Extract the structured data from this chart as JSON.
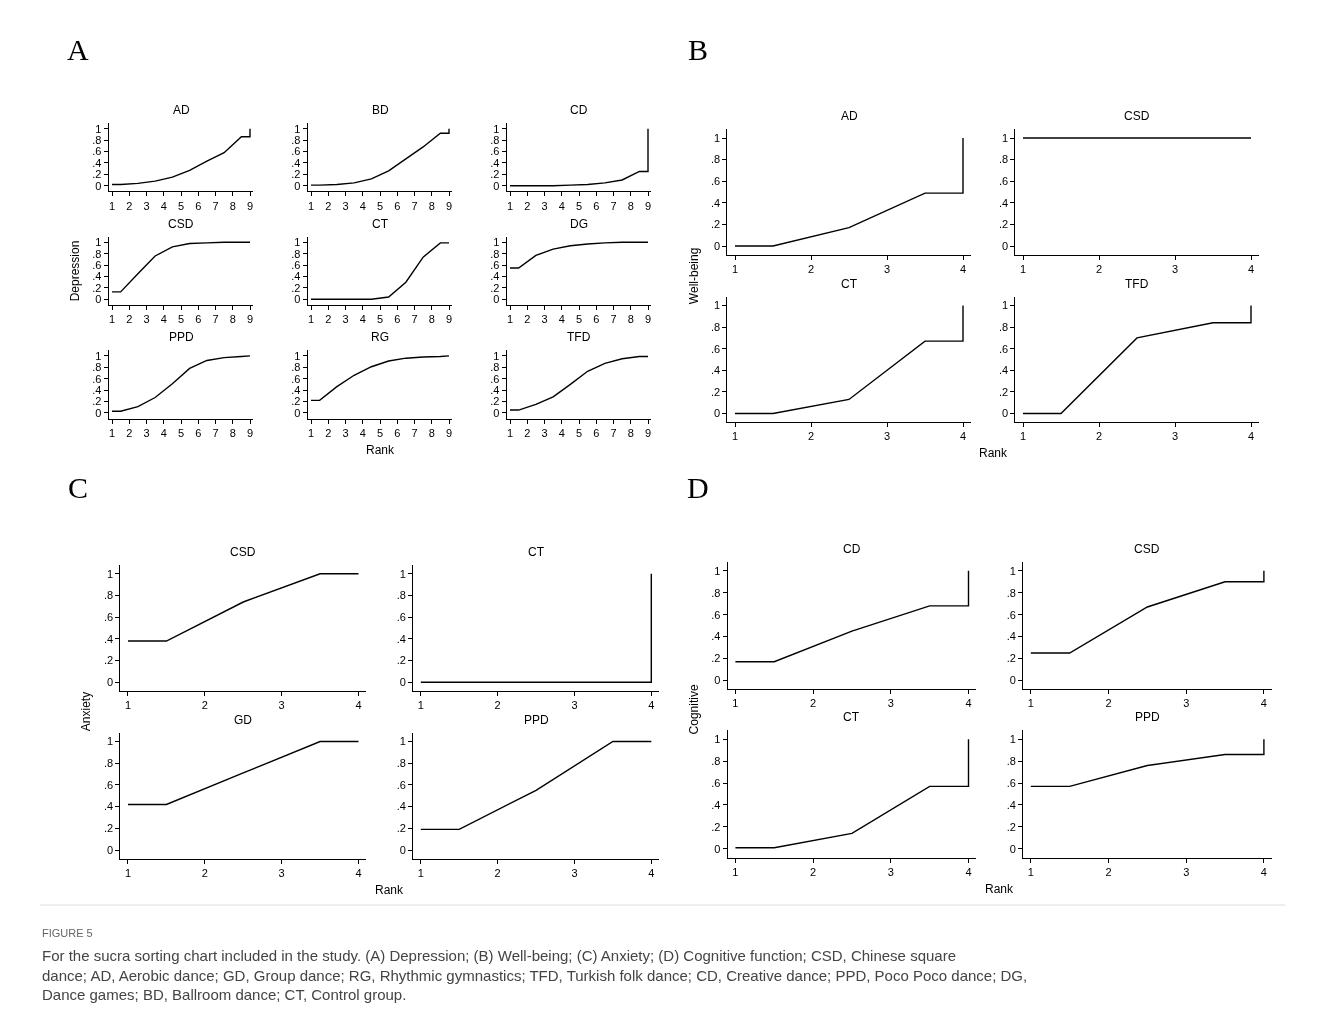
{
  "chart_data": [
    {
      "type": "line",
      "title": "AD",
      "x": [
        1,
        1.5,
        2.5,
        3.5,
        4.5,
        5.5,
        6.5,
        7.5,
        8.5,
        9,
        9
      ],
      "values": [
        0.02,
        0.02,
        0.04,
        0.08,
        0.15,
        0.27,
        0.43,
        0.58,
        0.86,
        0.86,
        1
      ],
      "color": "#000000",
      "xlim": [
        0.8,
        9.2
      ],
      "ylim": [
        -0.1,
        1.1
      ],
      "xticks": [
        1,
        2,
        3,
        4,
        5,
        6,
        7,
        8,
        9
      ],
      "yticks": [
        0,
        {
          "value": 0.2,
          "label": ".2"
        },
        {
          "value": 0.4,
          "label": ".4"
        },
        {
          "value": 0.6,
          "label": ".6"
        },
        {
          "value": 0.8,
          "label": ".8"
        },
        1
      ],
      "annotations": [
        "A",
        "FIGURE 5",
        "For the sucra sorting chart included in the study. (A) Depression; (B) Well-being; (C) Anxiety; (D) Cognitive function; CSD, Chinese square dance; AD, Aerobic dance; GD, Group dance; RG, Rhythmic gymnastics; TFD, Turkish folk dance; CD, Creative dance; PPD, Poco Poco dance; DG, Dance games; BD, Ballroom dance; CT, Control group."
      ]
    },
    {
      "type": "line",
      "title": "BD",
      "x": [
        1,
        1.5,
        2.5,
        3.5,
        4.5,
        5.5,
        6.5,
        7.5,
        8.5,
        9,
        9
      ],
      "values": [
        0.01,
        0.01,
        0.02,
        0.05,
        0.12,
        0.26,
        0.47,
        0.68,
        0.92,
        0.92,
        1
      ],
      "color": "#000000",
      "xlim": [
        0.8,
        9.2
      ],
      "ylim": [
        -0.1,
        1.1
      ],
      "xticks": [
        1,
        2,
        3,
        4,
        5,
        6,
        7,
        8,
        9
      ],
      "yticks": [
        0,
        {
          "value": 0.2,
          "label": ".2"
        },
        {
          "value": 0.4,
          "label": ".4"
        },
        {
          "value": 0.6,
          "label": ".6"
        },
        {
          "value": 0.8,
          "label": ".8"
        },
        1
      ]
    },
    {
      "type": "line",
      "title": "CD",
      "x": [
        1,
        1.5,
        2.5,
        3.5,
        4.5,
        5.5,
        6.5,
        7.5,
        8.5,
        9,
        9
      ],
      "values": [
        0,
        0,
        0,
        0,
        0.01,
        0.02,
        0.05,
        0.1,
        0.25,
        0.25,
        1
      ],
      "color": "#000000",
      "xlim": [
        0.8,
        9.2
      ],
      "ylim": [
        -0.1,
        1.1
      ],
      "xticks": [
        1,
        2,
        3,
        4,
        5,
        6,
        7,
        8,
        9
      ],
      "yticks": [
        0,
        {
          "value": 0.2,
          "label": ".2"
        },
        {
          "value": 0.4,
          "label": ".4"
        },
        {
          "value": 0.6,
          "label": ".6"
        },
        {
          "value": 0.8,
          "label": ".8"
        },
        1
      ]
    },
    {
      "type": "line",
      "title": "CSD",
      "ylabel": "Depression",
      "x": [
        1,
        1.5,
        2.5,
        3.5,
        4.5,
        5.5,
        6.5,
        7.5,
        8.5,
        9
      ],
      "values": [
        0.13,
        0.13,
        0.45,
        0.76,
        0.92,
        0.98,
        0.99,
        1,
        1,
        1
      ],
      "color": "#000000",
      "xlim": [
        0.8,
        9.2
      ],
      "ylim": [
        -0.1,
        1.1
      ],
      "xticks": [
        1,
        2,
        3,
        4,
        5,
        6,
        7,
        8,
        9
      ],
      "yticks": [
        0,
        {
          "value": 0.2,
          "label": ".2"
        },
        {
          "value": 0.4,
          "label": ".4"
        },
        {
          "value": 0.6,
          "label": ".6"
        },
        {
          "value": 0.8,
          "label": ".8"
        },
        1
      ]
    },
    {
      "type": "line",
      "title": "CT",
      "x": [
        1,
        1.5,
        2.5,
        3.5,
        4.5,
        5.5,
        6.5,
        7.5,
        8.5,
        9
      ],
      "values": [
        0,
        0,
        0,
        0,
        0,
        0.04,
        0.3,
        0.74,
        0.99,
        0.99
      ],
      "color": "#000000",
      "xlim": [
        0.8,
        9.2
      ],
      "ylim": [
        -0.1,
        1.1
      ],
      "xticks": [
        1,
        2,
        3,
        4,
        5,
        6,
        7,
        8,
        9
      ],
      "yticks": [
        0,
        {
          "value": 0.2,
          "label": ".2"
        },
        {
          "value": 0.4,
          "label": ".4"
        },
        {
          "value": 0.6,
          "label": ".6"
        },
        {
          "value": 0.8,
          "label": ".8"
        },
        1
      ]
    },
    {
      "type": "line",
      "title": "DG",
      "x": [
        1,
        1.5,
        2.5,
        3.5,
        4.5,
        5.5,
        6.5,
        7.5,
        8.5,
        9
      ],
      "values": [
        0.55,
        0.55,
        0.77,
        0.88,
        0.94,
        0.97,
        0.99,
        1,
        1,
        1
      ],
      "color": "#000000",
      "xlim": [
        0.8,
        9.2
      ],
      "ylim": [
        -0.1,
        1.1
      ],
      "xticks": [
        1,
        2,
        3,
        4,
        5,
        6,
        7,
        8,
        9
      ],
      "yticks": [
        0,
        {
          "value": 0.2,
          "label": ".2"
        },
        {
          "value": 0.4,
          "label": ".4"
        },
        {
          "value": 0.6,
          "label": ".6"
        },
        {
          "value": 0.8,
          "label": ".8"
        },
        1
      ]
    },
    {
      "type": "line",
      "title": "PPD",
      "x": [
        1,
        1.5,
        2.5,
        3.5,
        4.5,
        5.5,
        6.5,
        7.5,
        8.5,
        9
      ],
      "values": [
        0.03,
        0.03,
        0.11,
        0.27,
        0.51,
        0.78,
        0.92,
        0.97,
        0.99,
        1
      ],
      "color": "#000000",
      "xlim": [
        0.8,
        9.2
      ],
      "ylim": [
        -0.1,
        1.1
      ],
      "xticks": [
        1,
        2,
        3,
        4,
        5,
        6,
        7,
        8,
        9
      ],
      "yticks": [
        0,
        {
          "value": 0.2,
          "label": ".2"
        },
        {
          "value": 0.4,
          "label": ".4"
        },
        {
          "value": 0.6,
          "label": ".6"
        },
        {
          "value": 0.8,
          "label": ".8"
        },
        1
      ]
    },
    {
      "type": "line",
      "title": "RG",
      "xlabel": "Rank",
      "x": [
        1,
        1.5,
        2.5,
        3.5,
        4.5,
        5.5,
        6.5,
        7.5,
        8.5,
        9
      ],
      "values": [
        0.22,
        0.22,
        0.46,
        0.66,
        0.81,
        0.91,
        0.96,
        0.98,
        0.99,
        1
      ],
      "color": "#000000",
      "xlim": [
        0.8,
        9.2
      ],
      "ylim": [
        -0.1,
        1.1
      ],
      "xticks": [
        1,
        2,
        3,
        4,
        5,
        6,
        7,
        8,
        9
      ],
      "yticks": [
        0,
        {
          "value": 0.2,
          "label": ".2"
        },
        {
          "value": 0.4,
          "label": ".4"
        },
        {
          "value": 0.6,
          "label": ".6"
        },
        {
          "value": 0.8,
          "label": ".8"
        },
        1
      ]
    },
    {
      "type": "line",
      "title": "TFD",
      "x": [
        1,
        1.5,
        2.5,
        3.5,
        4.5,
        5.5,
        6.5,
        7.5,
        8.5,
        9
      ],
      "values": [
        0.05,
        0.05,
        0.15,
        0.28,
        0.5,
        0.73,
        0.87,
        0.95,
        0.99,
        0.99
      ],
      "color": "#000000",
      "xlim": [
        0.8,
        9.2
      ],
      "ylim": [
        -0.1,
        1.1
      ],
      "xticks": [
        1,
        2,
        3,
        4,
        5,
        6,
        7,
        8,
        9
      ],
      "yticks": [
        0,
        {
          "value": 0.2,
          "label": ".2"
        },
        {
          "value": 0.4,
          "label": ".4"
        },
        {
          "value": 0.6,
          "label": ".6"
        },
        {
          "value": 0.8,
          "label": ".8"
        },
        1
      ]
    },
    {
      "type": "line",
      "title": "AD",
      "ylabel": "Well-being",
      "annotations": [
        "B"
      ],
      "x": [
        1,
        1.5,
        2.5,
        3.5,
        4,
        4
      ],
      "values": [
        0,
        0,
        0.17,
        0.49,
        0.49,
        1
      ],
      "color": "#000000",
      "xlim": [
        0.9,
        4.1
      ],
      "ylim": [
        -0.08,
        1.08
      ],
      "xticks": [
        1,
        2,
        3,
        4
      ],
      "yticks": [
        0,
        {
          "value": 0.2,
          "label": ".2"
        },
        {
          "value": 0.4,
          "label": ".4"
        },
        {
          "value": 0.6,
          "label": ".6"
        },
        {
          "value": 0.8,
          "label": ".8"
        },
        1
      ]
    },
    {
      "type": "line",
      "title": "CSD",
      "x": [
        1,
        1.5,
        2.5,
        3.5,
        4
      ],
      "values": [
        1,
        1,
        1,
        1,
        1
      ],
      "color": "#000000",
      "xlim": [
        0.9,
        4.1
      ],
      "ylim": [
        -0.08,
        1.08
      ],
      "xticks": [
        1,
        2,
        3,
        4
      ],
      "yticks": [
        0,
        {
          "value": 0.2,
          "label": ".2"
        },
        {
          "value": 0.4,
          "label": ".4"
        },
        {
          "value": 0.6,
          "label": ".6"
        },
        {
          "value": 0.8,
          "label": ".8"
        },
        1
      ]
    },
    {
      "type": "line",
      "title": "CT",
      "xlabel": "Rank",
      "x": [
        1,
        1.5,
        2.5,
        3.5,
        4,
        4
      ],
      "values": [
        0,
        0,
        0.13,
        0.67,
        0.67,
        1
      ],
      "color": "#000000",
      "xlim": [
        0.9,
        4.1
      ],
      "ylim": [
        -0.08,
        1.08
      ],
      "xticks": [
        1,
        2,
        3,
        4
      ],
      "yticks": [
        0,
        {
          "value": 0.2,
          "label": ".2"
        },
        {
          "value": 0.4,
          "label": ".4"
        },
        {
          "value": 0.6,
          "label": ".6"
        },
        {
          "value": 0.8,
          "label": ".8"
        },
        1
      ]
    },
    {
      "type": "line",
      "title": "TFD",
      "x": [
        1,
        1.5,
        2.5,
        3.5,
        4,
        4
      ],
      "values": [
        0,
        0,
        0.7,
        0.84,
        0.84,
        1
      ],
      "color": "#000000",
      "xlim": [
        0.9,
        4.1
      ],
      "ylim": [
        -0.08,
        1.08
      ],
      "xticks": [
        1,
        2,
        3,
        4
      ],
      "yticks": [
        0,
        {
          "value": 0.2,
          "label": ".2"
        },
        {
          "value": 0.4,
          "label": ".4"
        },
        {
          "value": 0.6,
          "label": ".6"
        },
        {
          "value": 0.8,
          "label": ".8"
        },
        1
      ]
    },
    {
      "type": "line",
      "title": "CSD",
      "ylabel": "Anxiety",
      "annotations": [
        "C"
      ],
      "x": [
        1,
        1.5,
        2.5,
        3.5,
        4
      ],
      "values": [
        0.38,
        0.38,
        0.74,
        1,
        1
      ],
      "color": "#000000",
      "xlim": [
        0.9,
        4.1
      ],
      "ylim": [
        -0.08,
        1.08
      ],
      "xticks": [
        1,
        2,
        3,
        4
      ],
      "yticks": [
        0,
        {
          "value": 0.2,
          "label": ".2"
        },
        {
          "value": 0.4,
          "label": ".4"
        },
        {
          "value": 0.6,
          "label": ".6"
        },
        {
          "value": 0.8,
          "label": ".8"
        },
        1
      ]
    },
    {
      "type": "line",
      "title": "CT",
      "x": [
        1,
        1.5,
        2.5,
        3.5,
        4,
        4
      ],
      "values": [
        0,
        0,
        0,
        0,
        0,
        1
      ],
      "color": "#000000",
      "xlim": [
        0.9,
        4.1
      ],
      "ylim": [
        -0.08,
        1.08
      ],
      "xticks": [
        1,
        2,
        3,
        4
      ],
      "yticks": [
        0,
        {
          "value": 0.2,
          "label": ".2"
        },
        {
          "value": 0.4,
          "label": ".4"
        },
        {
          "value": 0.6,
          "label": ".6"
        },
        {
          "value": 0.8,
          "label": ".8"
        },
        1
      ]
    },
    {
      "type": "line",
      "title": "GD",
      "xlabel": "Rank",
      "x": [
        1,
        1.5,
        2.5,
        3.5,
        4
      ],
      "values": [
        0.42,
        0.42,
        0.71,
        1,
        1
      ],
      "color": "#000000",
      "xlim": [
        0.9,
        4.1
      ],
      "ylim": [
        -0.08,
        1.08
      ],
      "xticks": [
        1,
        2,
        3,
        4
      ],
      "yticks": [
        0,
        {
          "value": 0.2,
          "label": ".2"
        },
        {
          "value": 0.4,
          "label": ".4"
        },
        {
          "value": 0.6,
          "label": ".6"
        },
        {
          "value": 0.8,
          "label": ".8"
        },
        1
      ]
    },
    {
      "type": "line",
      "title": "PPD",
      "x": [
        1,
        1.5,
        2.5,
        3.5,
        4
      ],
      "values": [
        0.19,
        0.19,
        0.55,
        1,
        1
      ],
      "color": "#000000",
      "xlim": [
        0.9,
        4.1
      ],
      "ylim": [
        -0.08,
        1.08
      ],
      "xticks": [
        1,
        2,
        3,
        4
      ],
      "yticks": [
        0,
        {
          "value": 0.2,
          "label": ".2"
        },
        {
          "value": 0.4,
          "label": ".4"
        },
        {
          "value": 0.6,
          "label": ".6"
        },
        {
          "value": 0.8,
          "label": ".8"
        },
        1
      ]
    },
    {
      "type": "line",
      "title": "CD",
      "ylabel": "Cognitive",
      "annotations": [
        "D"
      ],
      "x": [
        1,
        1.5,
        2.5,
        3.5,
        4,
        4
      ],
      "values": [
        0.17,
        0.17,
        0.45,
        0.68,
        0.68,
        1
      ],
      "color": "#000000",
      "xlim": [
        0.9,
        4.1
      ],
      "ylim": [
        -0.08,
        1.08
      ],
      "xticks": [
        1,
        2,
        3,
        4
      ],
      "yticks": [
        0,
        {
          "value": 0.2,
          "label": ".2"
        },
        {
          "value": 0.4,
          "label": ".4"
        },
        {
          "value": 0.6,
          "label": ".6"
        },
        {
          "value": 0.8,
          "label": ".8"
        },
        1
      ]
    },
    {
      "type": "line",
      "title": "CSD",
      "x": [
        1,
        1.5,
        2.5,
        3.5,
        4,
        4
      ],
      "values": [
        0.25,
        0.25,
        0.67,
        0.9,
        0.9,
        1
      ],
      "color": "#000000",
      "xlim": [
        0.9,
        4.1
      ],
      "ylim": [
        -0.08,
        1.08
      ],
      "xticks": [
        1,
        2,
        3,
        4
      ],
      "yticks": [
        0,
        {
          "value": 0.2,
          "label": ".2"
        },
        {
          "value": 0.4,
          "label": ".4"
        },
        {
          "value": 0.6,
          "label": ".6"
        },
        {
          "value": 0.8,
          "label": ".8"
        },
        1
      ]
    },
    {
      "type": "line",
      "title": "CT",
      "xlabel": "Rank",
      "x": [
        1,
        1.5,
        2.5,
        3.5,
        4,
        4
      ],
      "values": [
        0.01,
        0.01,
        0.14,
        0.57,
        0.57,
        1
      ],
      "color": "#000000",
      "xlim": [
        0.9,
        4.1
      ],
      "ylim": [
        -0.08,
        1.08
      ],
      "xticks": [
        1,
        2,
        3,
        4
      ],
      "yticks": [
        0,
        {
          "value": 0.2,
          "label": ".2"
        },
        {
          "value": 0.4,
          "label": ".4"
        },
        {
          "value": 0.6,
          "label": ".6"
        },
        {
          "value": 0.8,
          "label": ".8"
        },
        1
      ]
    },
    {
      "type": "line",
      "title": "PPD",
      "x": [
        1,
        1.5,
        2.5,
        3.5,
        4,
        4
      ],
      "values": [
        0.57,
        0.57,
        0.76,
        0.86,
        0.86,
        1
      ],
      "color": "#000000",
      "xlim": [
        0.9,
        4.1
      ],
      "ylim": [
        -0.08,
        1.08
      ],
      "xticks": [
        1,
        2,
        3,
        4
      ],
      "yticks": [
        0,
        {
          "value": 0.2,
          "label": ".2"
        },
        {
          "value": 0.4,
          "label": ".4"
        },
        {
          "value": 0.6,
          "label": ".6"
        },
        {
          "value": 0.8,
          "label": ".8"
        },
        1
      ]
    }
  ]
}
